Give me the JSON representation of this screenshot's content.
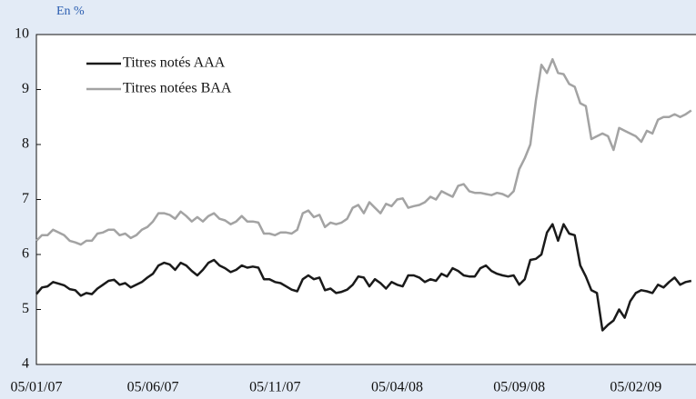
{
  "chart_data": {
    "type": "line",
    "unit_label": "En %",
    "categories": [
      "05/01/07",
      null,
      null,
      null,
      null,
      null,
      null,
      null,
      null,
      null,
      null,
      null,
      null,
      null,
      null,
      null,
      null,
      null,
      null,
      null,
      null,
      "05/06/07",
      null,
      null,
      null,
      null,
      null,
      null,
      null,
      null,
      null,
      null,
      null,
      null,
      null,
      null,
      null,
      null,
      null,
      null,
      null,
      null,
      null,
      "05/11/07",
      null,
      null,
      null,
      null,
      null,
      null,
      null,
      null,
      null,
      null,
      null,
      null,
      null,
      null,
      null,
      null,
      null,
      null,
      null,
      null,
      null,
      "05/04/08",
      null,
      null,
      null,
      null,
      null,
      null,
      null,
      null,
      null,
      null,
      null,
      null,
      null,
      null,
      null,
      null,
      null,
      null,
      null,
      null,
      null,
      "05/09/08",
      null,
      null,
      null,
      null,
      null,
      null,
      null,
      null,
      null,
      null,
      null,
      null,
      null,
      null,
      null,
      null,
      null,
      null,
      null,
      null,
      "05/02/09",
      null,
      null,
      null,
      null,
      null,
      null,
      null,
      null,
      null,
      null
    ],
    "series": [
      {
        "name": "Titres notés AAA",
        "color": "#1a1a1a",
        "values": [
          5.28,
          5.4,
          5.42,
          5.5,
          5.47,
          5.44,
          5.37,
          5.35,
          5.25,
          5.3,
          5.28,
          5.38,
          5.45,
          5.52,
          5.54,
          5.45,
          5.48,
          5.4,
          5.45,
          5.5,
          5.58,
          5.65,
          5.8,
          5.85,
          5.82,
          5.72,
          5.85,
          5.8,
          5.7,
          5.62,
          5.72,
          5.85,
          5.9,
          5.8,
          5.75,
          5.68,
          5.72,
          5.8,
          5.76,
          5.78,
          5.76,
          5.55,
          5.55,
          5.5,
          5.48,
          5.42,
          5.36,
          5.33,
          5.55,
          5.62,
          5.55,
          5.58,
          5.35,
          5.38,
          5.3,
          5.32,
          5.36,
          5.45,
          5.6,
          5.58,
          5.42,
          5.55,
          5.48,
          5.38,
          5.5,
          5.45,
          5.42,
          5.62,
          5.62,
          5.58,
          5.5,
          5.55,
          5.52,
          5.65,
          5.6,
          5.75,
          5.7,
          5.62,
          5.6,
          5.6,
          5.75,
          5.8,
          5.7,
          5.65,
          5.62,
          5.6,
          5.62,
          5.45,
          5.55,
          5.9,
          5.92,
          6.0,
          6.4,
          6.55,
          6.25,
          6.55,
          6.38,
          6.35,
          5.8,
          5.6,
          5.35,
          5.3,
          4.62,
          4.72,
          4.8,
          5.0,
          4.85,
          5.15,
          5.3,
          5.35,
          5.33,
          5.3,
          5.45,
          5.4,
          5.5,
          5.58,
          5.45,
          5.5,
          5.52
        ]
      },
      {
        "name": "Titres notées BAA",
        "color": "#a3a3a3",
        "values": [
          6.25,
          6.35,
          6.35,
          6.45,
          6.4,
          6.35,
          6.25,
          6.22,
          6.18,
          6.25,
          6.25,
          6.38,
          6.4,
          6.45,
          6.45,
          6.35,
          6.38,
          6.3,
          6.35,
          6.45,
          6.5,
          6.6,
          6.75,
          6.75,
          6.72,
          6.65,
          6.78,
          6.7,
          6.6,
          6.68,
          6.6,
          6.7,
          6.75,
          6.65,
          6.62,
          6.55,
          6.6,
          6.7,
          6.6,
          6.6,
          6.58,
          6.38,
          6.38,
          6.35,
          6.4,
          6.4,
          6.38,
          6.45,
          6.75,
          6.8,
          6.68,
          6.72,
          6.5,
          6.58,
          6.55,
          6.58,
          6.65,
          6.85,
          6.9,
          6.75,
          6.95,
          6.85,
          6.75,
          6.92,
          6.88,
          7.0,
          7.02,
          6.85,
          6.88,
          6.9,
          6.95,
          7.05,
          7.0,
          7.15,
          7.1,
          7.05,
          7.25,
          7.28,
          7.15,
          7.12,
          7.12,
          7.1,
          7.08,
          7.12,
          7.1,
          7.05,
          7.15,
          7.55,
          7.75,
          8.0,
          8.8,
          9.45,
          9.3,
          9.55,
          9.3,
          9.28,
          9.1,
          9.05,
          8.75,
          8.7,
          8.1,
          8.15,
          8.2,
          8.15,
          7.9,
          8.3,
          8.25,
          8.2,
          8.15,
          8.05,
          8.25,
          8.2,
          8.45,
          8.5,
          8.5,
          8.55,
          8.5,
          8.55,
          8.62
        ]
      }
    ],
    "ylim": [
      4,
      10
    ],
    "yticks": [
      4,
      5,
      6,
      7,
      8,
      9,
      10
    ],
    "legend": "upper left"
  }
}
